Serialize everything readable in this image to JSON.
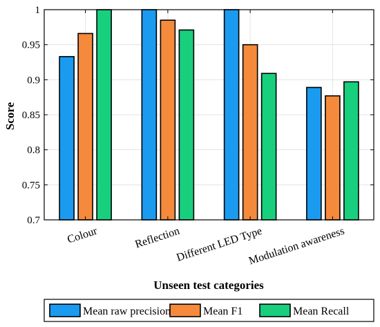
{
  "chart_data": {
    "type": "bar",
    "title": "",
    "xlabel": "Unseen test categories",
    "ylabel": "Score",
    "ylim": [
      0.7,
      1.0
    ],
    "yticks": [
      "0.7",
      "0.75",
      "0.8",
      "0.85",
      "0.9",
      "0.95",
      "1"
    ],
    "grid": true,
    "legend_position": "bottom",
    "categories": [
      "Colour",
      "Reflection",
      "Different LED Type",
      "Modulation awareness"
    ],
    "series": [
      {
        "name": "Mean raw precision",
        "color": "#1a9bf0",
        "values": [
          0.933,
          1.0,
          1.0,
          0.889
        ]
      },
      {
        "name": "Mean F1",
        "color": "#f58a3c",
        "values": [
          0.966,
          0.985,
          0.95,
          0.877
        ]
      },
      {
        "name": "Mean Recall",
        "color": "#18cf7e",
        "values": [
          1.0,
          0.971,
          0.909,
          0.897
        ]
      }
    ]
  }
}
